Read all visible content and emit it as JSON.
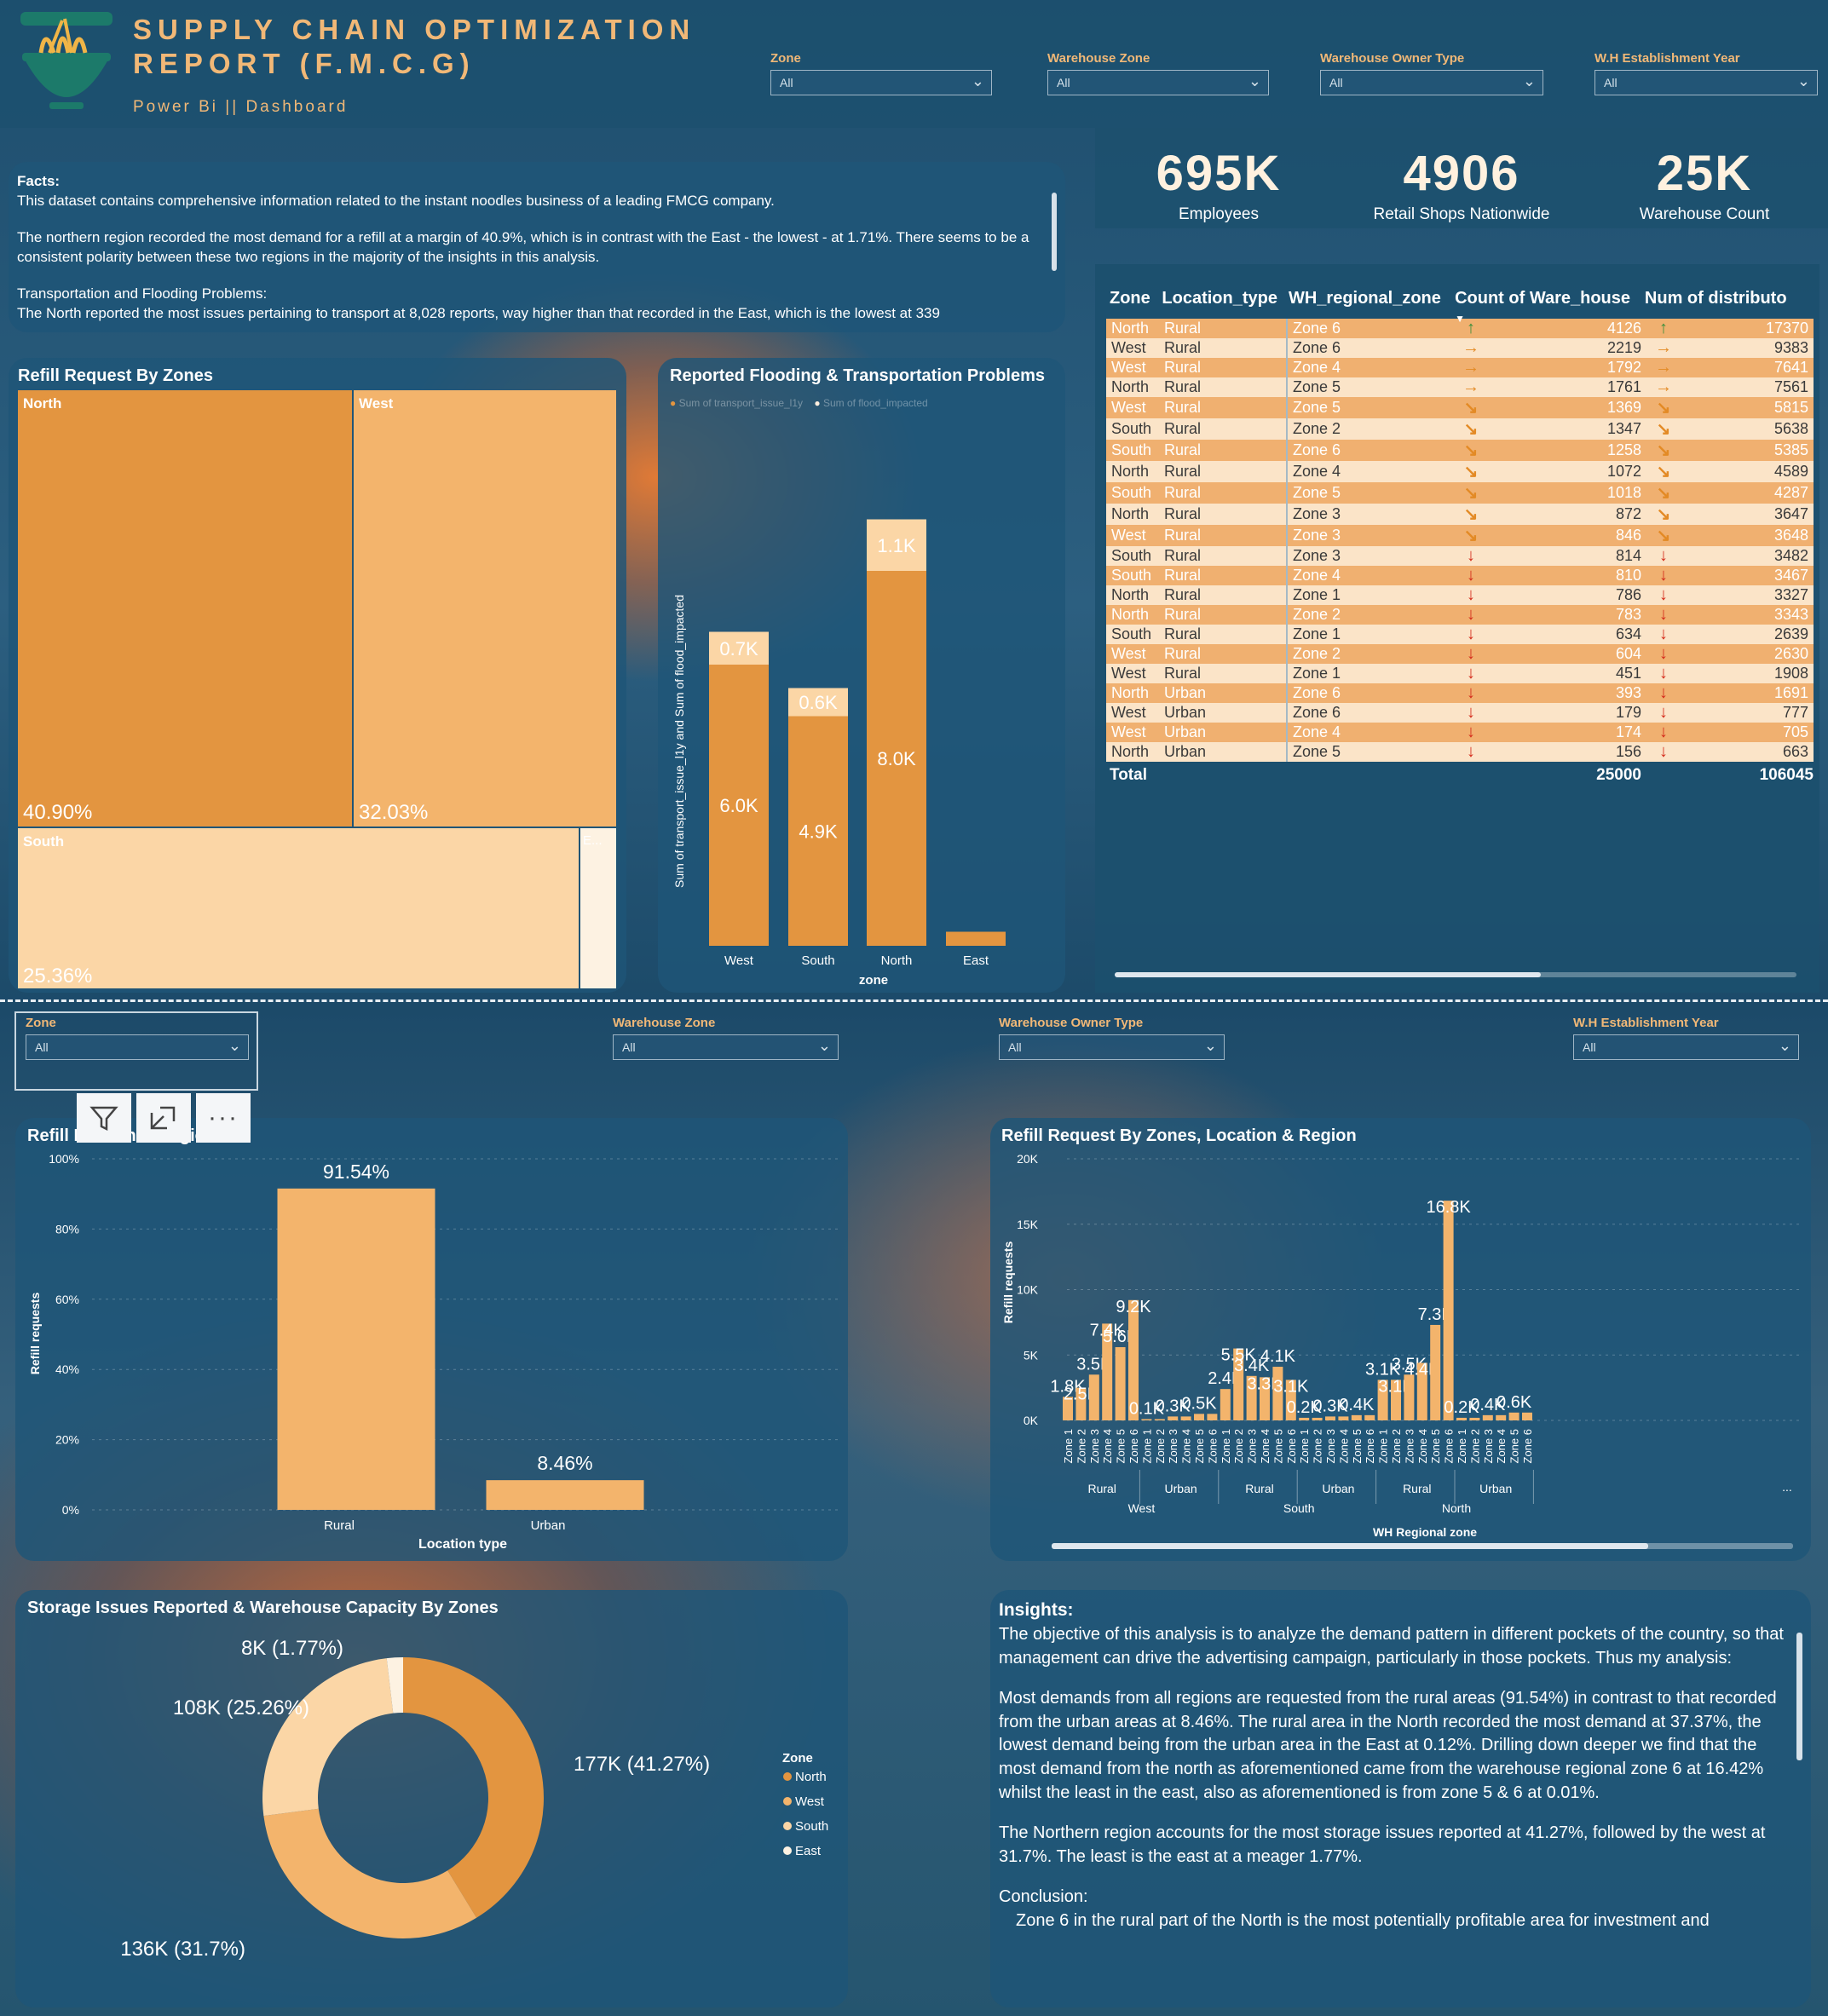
{
  "header": {
    "title_line1": "SUPPLY CHAIN OPTIMIZATION",
    "title_line2": "REPORT (F.M.C.G)",
    "subtitle": "Power Bi || Dashboard"
  },
  "colors": {
    "north": "#e39540",
    "west": "#f3b46c",
    "south": "#fbd6a6",
    "east": "#fdf2e2",
    "panel": "#1e5678",
    "accent": "#f1b877"
  },
  "slicers_top": [
    {
      "label": "Zone",
      "value": "All"
    },
    {
      "label": "Warehouse Zone",
      "value": "All"
    },
    {
      "label": "Warehouse Owner Type",
      "value": "All"
    },
    {
      "label": "W.H Establishment Year",
      "value": "All"
    }
  ],
  "slicers_bottom": [
    {
      "label": "Zone",
      "value": "All"
    },
    {
      "label": "Warehouse Zone",
      "value": "All"
    },
    {
      "label": "Warehouse Owner Type",
      "value": "All"
    },
    {
      "label": "W.H Establishment Year",
      "value": "All"
    }
  ],
  "facts": {
    "heading": "Facts:",
    "p1": "This dataset contains comprehensive information related to the instant noodles business of a leading FMCG company.",
    "p2": "The northern region recorded the most demand  for a refill at a margin of 40.9%, which is in contrast with the East - the lowest - at 1.71%. There seems to be a consistent polarity between these two regions in the majority of the insights in this analysis.",
    "p3": "Transportation and Flooding Problems:",
    "p4": "The North reported the most issues pertaining to transport at 8,028 reports, way higher than that recorded in the East, which is the lowest at 339"
  },
  "kpis": [
    {
      "value": "695K",
      "label": "Employees"
    },
    {
      "value": "4906",
      "label": "Retail Shops Nationwide"
    },
    {
      "value": "25K",
      "label": "Warehouse Count"
    }
  ],
  "treemap": {
    "title": "Refill Request By Zones",
    "tiles": [
      {
        "name": "North",
        "pct": "40.90%"
      },
      {
        "name": "West",
        "pct": "32.03%"
      },
      {
        "name": "South",
        "pct": "25.36%"
      },
      {
        "name": "E...",
        "pct": ""
      }
    ]
  },
  "table": {
    "columns": [
      "Zone",
      "Location_type",
      "WH_regional_zone",
      "Count of Ware_house",
      "Num of distributo"
    ],
    "rows": [
      [
        "North",
        "Rural",
        "Zone 6",
        "up",
        "4126",
        "up",
        "17370"
      ],
      [
        "West",
        "Rural",
        "Zone 6",
        "right",
        "2219",
        "right",
        "9383"
      ],
      [
        "West",
        "Rural",
        "Zone 4",
        "right",
        "1792",
        "right",
        "7641"
      ],
      [
        "North",
        "Rural",
        "Zone 5",
        "right",
        "1761",
        "right",
        "7561"
      ],
      [
        "West",
        "Rural",
        "Zone 5",
        "diag",
        "1369",
        "diag",
        "5815"
      ],
      [
        "South",
        "Rural",
        "Zone 2",
        "diag",
        "1347",
        "diag",
        "5638"
      ],
      [
        "South",
        "Rural",
        "Zone 6",
        "diag",
        "1258",
        "diag",
        "5385"
      ],
      [
        "North",
        "Rural",
        "Zone 4",
        "diag",
        "1072",
        "diag",
        "4589"
      ],
      [
        "South",
        "Rural",
        "Zone 5",
        "diag",
        "1018",
        "diag",
        "4287"
      ],
      [
        "North",
        "Rural",
        "Zone 3",
        "diag",
        "872",
        "diag",
        "3647"
      ],
      [
        "West",
        "Rural",
        "Zone 3",
        "diag",
        "846",
        "diag",
        "3648"
      ],
      [
        "South",
        "Rural",
        "Zone 3",
        "down",
        "814",
        "down",
        "3482"
      ],
      [
        "South",
        "Rural",
        "Zone 4",
        "down",
        "810",
        "down",
        "3467"
      ],
      [
        "North",
        "Rural",
        "Zone 1",
        "down",
        "786",
        "down",
        "3327"
      ],
      [
        "North",
        "Rural",
        "Zone 2",
        "down",
        "783",
        "down",
        "3343"
      ],
      [
        "South",
        "Rural",
        "Zone 1",
        "down",
        "634",
        "down",
        "2639"
      ],
      [
        "West",
        "Rural",
        "Zone 2",
        "down",
        "604",
        "down",
        "2630"
      ],
      [
        "West",
        "Rural",
        "Zone 1",
        "down",
        "451",
        "down",
        "1908"
      ],
      [
        "North",
        "Urban",
        "Zone 6",
        "down",
        "393",
        "down",
        "1691"
      ],
      [
        "West",
        "Urban",
        "Zone 6",
        "down",
        "179",
        "down",
        "777"
      ],
      [
        "West",
        "Urban",
        "Zone 4",
        "down",
        "174",
        "down",
        "705"
      ],
      [
        "North",
        "Urban",
        "Zone 5",
        "down",
        "156",
        "down",
        "663"
      ]
    ],
    "total": {
      "label": "Total",
      "count": "25000",
      "num": "106045"
    }
  },
  "chart_data": [
    {
      "type": "bar",
      "title": "Reported Flooding & Transportation Problems",
      "xlabel": "zone",
      "ylabel": "Sum of transport_issue_l1y and Sum of flood_impacted",
      "categories": [
        "West",
        "South",
        "North",
        "East"
      ],
      "series": [
        {
          "name": "Sum of transport_issue_l1y",
          "values": [
            6.0,
            4.9,
            8.0,
            0.3
          ],
          "labels": [
            "6.0K",
            "4.9K",
            "8.0K",
            ""
          ]
        },
        {
          "name": "Sum of flood_impacted",
          "values": [
            0.7,
            0.6,
            1.1,
            0
          ],
          "labels": [
            "0.7K",
            "0.6K",
            "1.1K",
            ""
          ]
        }
      ],
      "units": "K",
      "stacked": true
    },
    {
      "type": "bar",
      "title": "Refill Request By Location & Region",
      "xlabel": "Location type",
      "ylabel": "Refill requests",
      "categories": [
        "Rural",
        "Urban"
      ],
      "values": [
        91.54,
        8.46
      ],
      "labels": [
        "91.54%",
        "8.46%"
      ],
      "ylim": [
        0,
        100
      ],
      "yticks": [
        "0%",
        "20%",
        "40%",
        "60%",
        "80%",
        "100%"
      ]
    },
    {
      "type": "bar",
      "title": "Refill Request By Zones, Location & Region",
      "xlabel": "WH Regional zone",
      "ylabel": "Refill requests",
      "yticks": [
        "0K",
        "5K",
        "10K",
        "15K",
        "20K"
      ],
      "ylim": [
        0,
        20
      ],
      "groups": [
        {
          "region": "West",
          "loc": "Rural",
          "values": [
            1.8,
            2.5,
            3.5,
            7.4,
            5.6,
            9.2
          ]
        },
        {
          "region": "West",
          "loc": "Urban",
          "values": [
            0.1,
            0.1,
            0.3,
            0.3,
            0.5,
            0.5
          ]
        },
        {
          "region": "South",
          "loc": "Rural",
          "values": [
            2.4,
            5.5,
            3.4,
            3.3,
            4.1,
            3.1
          ]
        },
        {
          "region": "South",
          "loc": "Urban",
          "values": [
            0.2,
            0.2,
            0.3,
            0.3,
            0.4,
            0.4
          ]
        },
        {
          "region": "North",
          "loc": "Rural",
          "values": [
            3.1,
            3.1,
            3.5,
            4.4,
            7.3,
            16.8
          ]
        },
        {
          "region": "North",
          "loc": "Urban",
          "values": [
            0.2,
            0.2,
            0.4,
            0.4,
            0.6,
            0.6
          ]
        }
      ],
      "data_labels": [
        [
          "1.8K",
          "2.5K",
          "3.5K",
          "7.4K",
          "5.6K",
          "9.2K"
        ],
        [
          "0.1K",
          "",
          "0.3K",
          "",
          "0.5K",
          ""
        ],
        [
          "2.4K",
          "5.5K",
          "3.4K",
          "3.3K",
          "4.1K",
          "3.1K"
        ],
        [
          "0.2K",
          "",
          "0.3K",
          "",
          "0.4K",
          ""
        ],
        [
          "3.1K",
          "3.1K",
          "3.5K",
          "4.4K",
          "7.3K",
          "16.8K"
        ],
        [
          "0.2K",
          "",
          "0.4K",
          "",
          "0.6K",
          ""
        ]
      ],
      "zone_labels": [
        "Zone 1",
        "Zone 2",
        "Zone 3",
        "Zone 4",
        "Zone 5",
        "Zone 6"
      ]
    },
    {
      "type": "pie",
      "title": "Storage Issues Reported & Warehouse Capacity By Zones",
      "legend_title": "Zone",
      "slices": [
        {
          "name": "North",
          "value": 177,
          "label": "177K (41.27%)"
        },
        {
          "name": "West",
          "value": 136,
          "label": "136K (31.7%)"
        },
        {
          "name": "South",
          "value": 108,
          "label": "108K (25.26%)"
        },
        {
          "name": "East",
          "value": 8,
          "label": "8K (1.77%)"
        }
      ]
    }
  ],
  "location_chart_title": "Refill R... tion & Region",
  "visual_header_icons": [
    "filter-icon",
    "focus-mode-icon",
    "more-options-icon"
  ],
  "insights": {
    "heading": "Insights:",
    "p1": "The objective of this analysis is to analyze the demand pattern in different pockets of the country, so that management can drive the advertising campaign, particularly in those pockets. Thus my analysis:",
    "p2": "Most demands from all regions are requested from the rural areas (91.54%) in contrast to that recorded from the urban areas at  8.46%. The rural area in the North recorded the most demand at 37.37%, the lowest demand being from the urban area in the East at 0.12%. Drilling down deeper we find that the most demand from the north as aforementioned came from the warehouse regional zone 6 at 16.42% whilst the least in the east, also as aforementioned is from zone 5 & 6 at 0.01%.",
    "p3": "The Northern region accounts for the most storage issues reported at 41.27%, followed by the west at 31.7%. The least is the east at a meager 1.77%.",
    "p4": "Conclusion:",
    "p5": "Zone 6 in the rural part of the North is the most potentially profitable area for investment and"
  }
}
